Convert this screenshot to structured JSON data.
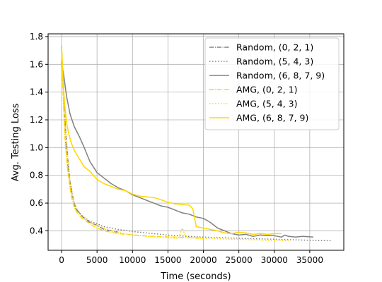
{
  "chart_data": {
    "type": "line",
    "xlabel": "Time (seconds)",
    "ylabel": "Avg. Testing Loss",
    "xlim": [
      -1900,
      39800
    ],
    "ylim": [
      0.26,
      1.82
    ],
    "xticks": [
      0,
      5000,
      10000,
      15000,
      20000,
      25000,
      30000,
      35000
    ],
    "yticks": [
      0.4,
      0.6,
      0.8,
      1.0,
      1.2,
      1.4,
      1.6,
      1.8
    ],
    "xtick_labels": [
      "0",
      "5000",
      "10000",
      "15000",
      "20000",
      "25000",
      "30000",
      "35000"
    ],
    "ytick_labels": [
      "0.4",
      "0.6",
      "0.8",
      "1.0",
      "1.2",
      "1.4",
      "1.6",
      "1.8"
    ],
    "grid": true,
    "legend_position": "top-right",
    "series": [
      {
        "name": "Random, (0, 2, 1)",
        "color": "#808080",
        "dash": "dashdot",
        "x": [
          0,
          300,
          600,
          900,
          1200,
          1600,
          2000,
          2500,
          3000,
          3500,
          4000,
          5000,
          6000,
          7000,
          8000
        ],
        "y": [
          1.73,
          1.35,
          1.1,
          0.9,
          0.75,
          0.64,
          0.56,
          0.53,
          0.5,
          0.48,
          0.46,
          0.44,
          0.41,
          0.4,
          0.39
        ]
      },
      {
        "name": "Random, (5, 4, 3)",
        "color": "#808080",
        "dash": "dotted",
        "x": [
          0,
          300,
          600,
          1000,
          1500,
          2000,
          3000,
          4000,
          6000,
          8000,
          10000,
          12000,
          15000,
          18000,
          20000,
          23000,
          26000,
          30000,
          33000,
          36000,
          38000
        ],
        "y": [
          1.73,
          1.3,
          1.0,
          0.8,
          0.65,
          0.56,
          0.5,
          0.47,
          0.43,
          0.41,
          0.395,
          0.385,
          0.37,
          0.36,
          0.355,
          0.35,
          0.345,
          0.34,
          0.335,
          0.33,
          0.33
        ]
      },
      {
        "name": "Random, (6, 8, 7, 9)",
        "color": "#808080",
        "dash": "solid",
        "x": [
          0,
          300,
          700,
          1200,
          1800,
          2500,
          3200,
          4000,
          5000,
          6000,
          7000,
          8000,
          9000,
          10000,
          11000,
          12000,
          13000,
          14000,
          15000,
          16000,
          17000,
          18000,
          19000,
          20000,
          21000,
          22000,
          23000,
          24000,
          25000,
          26000,
          27000,
          28000,
          29000,
          30000,
          31000,
          31500,
          32000,
          33000,
          34000,
          35500
        ],
        "y": [
          1.62,
          1.52,
          1.37,
          1.24,
          1.15,
          1.08,
          1.0,
          0.9,
          0.82,
          0.78,
          0.74,
          0.71,
          0.69,
          0.66,
          0.64,
          0.62,
          0.6,
          0.58,
          0.57,
          0.55,
          0.53,
          0.52,
          0.5,
          0.49,
          0.46,
          0.42,
          0.4,
          0.38,
          0.37,
          0.375,
          0.36,
          0.37,
          0.365,
          0.365,
          0.355,
          0.37,
          0.36,
          0.355,
          0.36,
          0.355
        ]
      },
      {
        "name": "AMG, (0, 2, 1)",
        "color": "#FFD700",
        "dash": "dashdot",
        "x": [
          0,
          200,
          500,
          800,
          1100,
          1400,
          1800,
          2200,
          2700,
          3200,
          4000,
          5000,
          6000,
          8000,
          10000,
          13000,
          16000,
          18000,
          20000
        ],
        "y": [
          1.73,
          1.4,
          1.05,
          0.87,
          0.74,
          0.64,
          0.57,
          0.53,
          0.5,
          0.48,
          0.45,
          0.42,
          0.4,
          0.38,
          0.37,
          0.36,
          0.355,
          0.35,
          0.345
        ]
      },
      {
        "name": "AMG, (5, 4, 3)",
        "color": "#FFD700",
        "dash": "dotted",
        "x": [
          0,
          300,
          600,
          1000,
          1400,
          1800,
          2300,
          3000,
          4000,
          5000,
          7000,
          9000,
          12000,
          15000,
          16500,
          17000,
          17500,
          19000,
          21000,
          24000,
          27000,
          30000,
          32000
        ],
        "y": [
          1.73,
          1.35,
          1.08,
          0.84,
          0.68,
          0.6,
          0.55,
          0.51,
          0.47,
          0.44,
          0.4,
          0.38,
          0.36,
          0.35,
          0.345,
          0.42,
          0.36,
          0.35,
          0.345,
          0.34,
          0.335,
          0.33,
          0.33
        ]
      },
      {
        "name": "AMG, (6, 8, 7, 9)",
        "color": "#FFD700",
        "dash": "solid",
        "x": [
          0,
          200,
          400,
          700,
          1000,
          1400,
          1900,
          2500,
          3200,
          4000,
          5000,
          6000,
          7000,
          8000,
          9000,
          10000,
          11000,
          12000,
          13000,
          14000,
          15000,
          16000,
          17000,
          18000,
          18500,
          19000,
          20000,
          21000,
          22000,
          23000,
          24000,
          25000,
          26000,
          27000,
          28000,
          29000,
          30000,
          31000
        ],
        "y": [
          1.74,
          1.5,
          1.33,
          1.18,
          1.1,
          1.03,
          0.97,
          0.92,
          0.86,
          0.83,
          0.77,
          0.74,
          0.72,
          0.7,
          0.69,
          0.665,
          0.65,
          0.645,
          0.64,
          0.625,
          0.605,
          0.595,
          0.59,
          0.585,
          0.56,
          0.43,
          0.42,
          0.41,
          0.4,
          0.385,
          0.38,
          0.39,
          0.385,
          0.375,
          0.38,
          0.375,
          0.38,
          0.38
        ]
      }
    ]
  }
}
